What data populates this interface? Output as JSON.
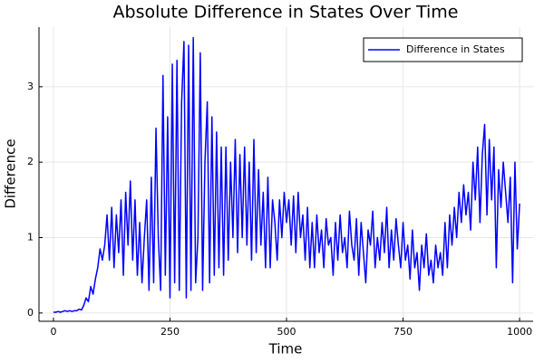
{
  "chart_data": {
    "type": "line",
    "title": "Absolute Difference in States Over Time",
    "x_label": "Time",
    "y_label": "Difference",
    "x": [
      0,
      5,
      10,
      15,
      20,
      25,
      30,
      35,
      40,
      45,
      50,
      55,
      60,
      65,
      70,
      75,
      80,
      85,
      90,
      95,
      100,
      105,
      110,
      115,
      120,
      125,
      130,
      135,
      140,
      145,
      150,
      155,
      160,
      165,
      170,
      175,
      180,
      185,
      190,
      195,
      200,
      205,
      210,
      215,
      220,
      225,
      230,
      235,
      240,
      245,
      250,
      255,
      260,
      265,
      270,
      275,
      280,
      285,
      290,
      295,
      300,
      305,
      310,
      315,
      320,
      325,
      330,
      335,
      340,
      345,
      350,
      355,
      360,
      365,
      370,
      375,
      380,
      385,
      390,
      395,
      400,
      405,
      410,
      415,
      420,
      425,
      430,
      435,
      440,
      445,
      450,
      455,
      460,
      465,
      470,
      475,
      480,
      485,
      490,
      495,
      500,
      505,
      510,
      515,
      520,
      525,
      530,
      535,
      540,
      545,
      550,
      555,
      560,
      565,
      570,
      575,
      580,
      585,
      590,
      595,
      600,
      605,
      610,
      615,
      620,
      625,
      630,
      635,
      640,
      645,
      650,
      655,
      660,
      665,
      670,
      675,
      680,
      685,
      690,
      695,
      700,
      705,
      710,
      715,
      720,
      725,
      730,
      735,
      740,
      745,
      750,
      755,
      760,
      765,
      770,
      775,
      780,
      785,
      790,
      795,
      800,
      805,
      810,
      815,
      820,
      825,
      830,
      835,
      840,
      845,
      850,
      855,
      860,
      865,
      870,
      875,
      880,
      885,
      890,
      895,
      900,
      905,
      910,
      915,
      920,
      925,
      930,
      935,
      940,
      945,
      950,
      955,
      960,
      965,
      970,
      975,
      980,
      985,
      990,
      995,
      1000
    ],
    "series": [
      {
        "name": "Difference in States",
        "color": "#0000ff",
        "values": [
          0.01,
          0.01,
          0.02,
          0.01,
          0.02,
          0.03,
          0.02,
          0.03,
          0.02,
          0.03,
          0.03,
          0.05,
          0.04,
          0.1,
          0.2,
          0.15,
          0.35,
          0.25,
          0.45,
          0.6,
          0.85,
          0.7,
          0.9,
          1.3,
          0.7,
          1.4,
          0.6,
          1.3,
          0.8,
          1.5,
          0.5,
          1.6,
          0.9,
          1.75,
          0.7,
          1.5,
          0.5,
          1.2,
          0.4,
          1.0,
          1.5,
          0.3,
          1.8,
          0.4,
          2.45,
          1.0,
          0.3,
          3.15,
          0.5,
          2.6,
          0.2,
          3.3,
          0.4,
          3.35,
          0.3,
          2.8,
          3.6,
          0.2,
          3.55,
          0.3,
          3.65,
          0.4,
          1.0,
          3.45,
          0.3,
          2.0,
          2.8,
          0.4,
          2.6,
          0.5,
          2.4,
          0.6,
          2.2,
          0.5,
          2.2,
          0.7,
          2.0,
          1.0,
          2.3,
          0.8,
          2.1,
          1.0,
          2.2,
          0.9,
          2.0,
          0.7,
          2.3,
          0.8,
          1.9,
          0.9,
          1.6,
          0.6,
          1.8,
          0.6,
          1.5,
          1.2,
          0.7,
          1.5,
          1.0,
          1.6,
          1.2,
          1.5,
          0.9,
          1.55,
          0.8,
          1.6,
          1.0,
          1.3,
          0.7,
          1.4,
          0.6,
          1.2,
          0.6,
          1.3,
          0.8,
          1.1,
          0.6,
          1.25,
          0.9,
          1.0,
          0.5,
          1.2,
          0.7,
          1.3,
          0.8,
          1.0,
          0.6,
          1.35,
          0.9,
          0.7,
          1.25,
          0.5,
          1.2,
          0.8,
          0.4,
          1.1,
          0.9,
          1.35,
          0.6,
          1.0,
          0.7,
          1.2,
          0.8,
          1.4,
          0.6,
          1.1,
          0.7,
          1.25,
          0.9,
          0.6,
          1.2,
          0.7,
          0.9,
          0.45,
          1.1,
          0.6,
          0.8,
          0.3,
          0.9,
          0.6,
          1.05,
          0.5,
          0.7,
          0.4,
          0.9,
          0.6,
          0.8,
          0.5,
          1.2,
          0.6,
          1.3,
          0.9,
          1.4,
          1.0,
          1.6,
          1.2,
          1.7,
          1.3,
          1.6,
          1.1,
          2.0,
          1.5,
          2.2,
          1.2,
          2.1,
          2.5,
          1.3,
          2.3,
          1.5,
          2.2,
          0.6,
          1.9,
          1.4,
          2.0,
          1.6,
          1.2,
          1.8,
          0.4,
          2.0,
          0.85,
          1.45
        ]
      }
    ],
    "xlim": [
      -31,
      1029
    ],
    "ylim": [
      -0.11,
      3.79
    ],
    "xticks": [
      0,
      250,
      500,
      750,
      1000
    ],
    "yticks": [
      0,
      1,
      2,
      3
    ],
    "grid": true,
    "legend": "top-right"
  }
}
